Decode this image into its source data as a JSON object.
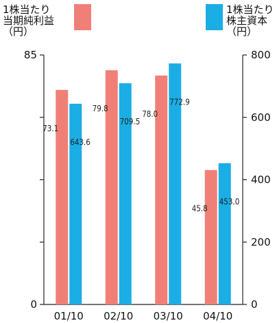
{
  "chart_data": {
    "type": "bar",
    "categories": [
      "01/10",
      "02/10",
      "03/10",
      "04/10"
    ],
    "series": [
      {
        "name": "1株当たり当期純利益",
        "axis": "left",
        "color": "#f08077",
        "values": [
          73.1,
          79.8,
          78.0,
          45.8
        ],
        "labels": [
          "73.1",
          "79.8",
          "78.0",
          "45.8"
        ]
      },
      {
        "name": "1株当たり株主資本",
        "axis": "right",
        "color": "#1aaee4",
        "values": [
          643.6,
          709.5,
          772.9,
          453.0
        ],
        "labels": [
          "643.6",
          "709.5",
          "772.9",
          "453.0"
        ]
      }
    ],
    "left_axis": {
      "unit": "（円）",
      "ylim": [
        0,
        85
      ],
      "ticks": [
        0,
        85
      ],
      "minor_ticks": [
        21.25,
        42.5,
        63.75
      ]
    },
    "right_axis": {
      "unit": "（円）",
      "ylim": [
        0,
        800
      ],
      "ticks": [
        0,
        200,
        400,
        600,
        800
      ]
    },
    "grid": false,
    "legend": {
      "left": {
        "line1": "1株当たり",
        "line2": "当期純利益",
        "unit": "（円）"
      },
      "right": {
        "line1": "1株当たり",
        "line2": "株主資本",
        "unit": "（円）"
      }
    }
  }
}
